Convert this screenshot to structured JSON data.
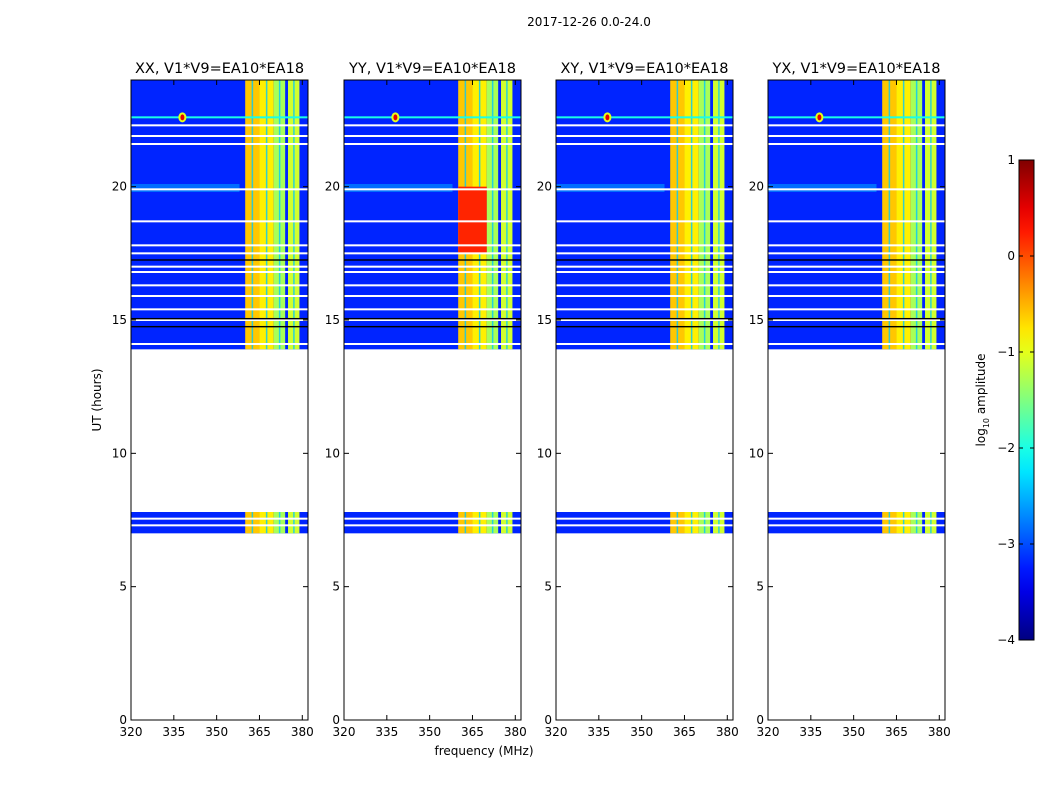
{
  "figure": {
    "suptitle": "2017-12-26 0.0-24.0",
    "xlabel": "frequency (MHz)",
    "ylabel": "UT (hours)"
  },
  "chart_data": {
    "type": "heatmap",
    "x_range": [
      320,
      382
    ],
    "y_range": [
      0,
      24
    ],
    "x_ticks": [
      320,
      335,
      350,
      365,
      380
    ],
    "y_ticks": [
      0,
      5,
      10,
      15,
      20
    ],
    "panels": [
      {
        "title": "XX, V1*V9=EA10*EA18",
        "polarization": "XX",
        "show_ylabel": true,
        "show_xlabel": false
      },
      {
        "title": "YY, V1*V9=EA10*EA18",
        "polarization": "YY",
        "show_ylabel": false,
        "show_xlabel": true
      },
      {
        "title": "XY, V1*V9=EA10*EA18",
        "polarization": "XY",
        "show_ylabel": false,
        "show_xlabel": false
      },
      {
        "title": "YX, V1*V9=EA10*EA18",
        "polarization": "YX",
        "show_ylabel": false,
        "show_xlabel": false
      }
    ],
    "data_time_ranges_hours": [
      [
        13.9,
        24.0
      ],
      [
        7.0,
        7.8
      ]
    ],
    "blanked_hours": [
      14.1,
      15.0,
      15.4,
      15.9,
      16.3,
      16.8,
      17.0,
      17.5,
      17.8,
      18.7,
      19.9,
      21.6,
      21.9,
      22.3
    ],
    "background_log_amp": -3.2,
    "rfi_bands_mhz": [
      [
        360,
        365,
        -0.6
      ],
      [
        365,
        370,
        -0.8
      ],
      [
        370,
        374,
        -1.3
      ],
      [
        375,
        379,
        -1.1
      ]
    ],
    "strong_rfi": {
      "panels": [
        "YY"
      ],
      "band_mhz": [
        360,
        370
      ],
      "hours": [
        17.5,
        20.0
      ],
      "log_amp": 0.2
    },
    "point_source": {
      "freq_mhz": 338,
      "hour": 22.6,
      "log_amp": 0.5
    },
    "colorbar": {
      "label": "log",
      "label_sub": "10",
      "label_rest": " amplitude",
      "range": [
        -4,
        1
      ],
      "ticks": [
        -4,
        -3,
        -2,
        -1,
        0,
        1
      ],
      "tick_labels": [
        "−4",
        "−3",
        "−2",
        "−1",
        "0",
        "1"
      ],
      "colormap": "jet"
    }
  }
}
